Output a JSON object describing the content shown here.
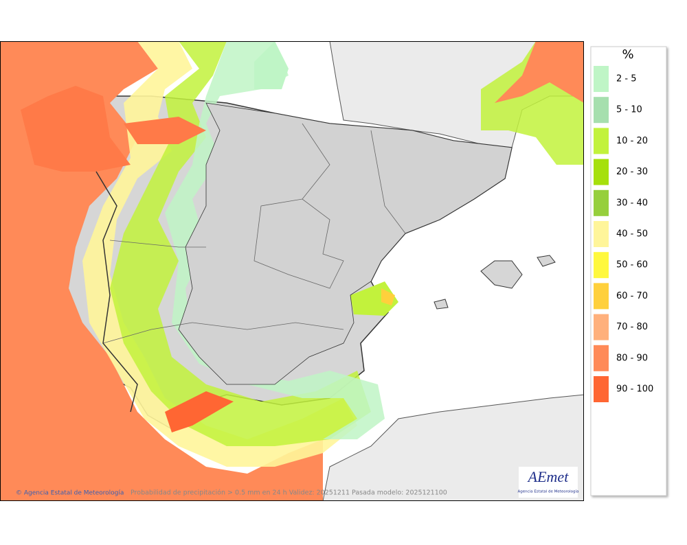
{
  "legend": {
    "title": "%",
    "items": [
      {
        "label": "2 - 5",
        "color": "#bff5c6"
      },
      {
        "label": "5 - 10",
        "color": "#a6dfae"
      },
      {
        "label": "10 - 20",
        "color": "#c2f23c"
      },
      {
        "label": "20 - 30",
        "color": "#a6e00c"
      },
      {
        "label": "30 - 40",
        "color": "#96cf3c"
      },
      {
        "label": "40 - 50",
        "color": "#fff59a"
      },
      {
        "label": "50 - 60",
        "color": "#fff83e"
      },
      {
        "label": "60 - 70",
        "color": "#ffd03c"
      },
      {
        "label": "70 - 80",
        "color": "#ffb07c"
      },
      {
        "label": "80 - 90",
        "color": "#ff8a58"
      },
      {
        "label": "90 - 100",
        "color": "#ff6633"
      }
    ]
  },
  "footer": {
    "credit": "© Agencia Estatal de Meteorología",
    "caption": "Probabilidad de precipitación > 0.5 mm en 24 h Validez: 20251211 Pasada modelo: 2025121100"
  },
  "logo": {
    "name": "AEmet",
    "subtitle": "Agencia Estatal de Meteorología"
  }
}
